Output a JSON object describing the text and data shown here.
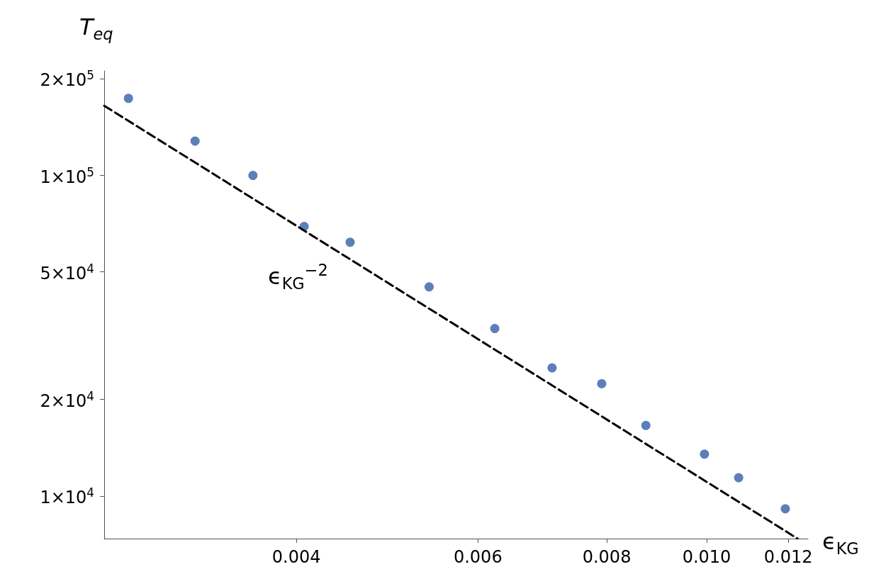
{
  "chart_data": {
    "type": "scatter",
    "xlabel": "ϵ$_{KG}$",
    "ylabel": "T$_{eq}$",
    "log": "xy",
    "xlim": [
      0.002604,
      0.01254
    ],
    "ylim": [
      7360,
      212000
    ],
    "xticks": [
      0.004,
      0.006,
      0.008,
      {
        "value": 0.01,
        "label": "0.010"
      },
      0.012
    ],
    "yticks": [
      {
        "value": 10000,
        "label": "1×10$^{4}$"
      },
      {
        "value": 20000,
        "label": "2×10$^{4}$"
      },
      {
        "value": 50000,
        "label": "5×10$^{4}$"
      },
      {
        "value": 100000,
        "label": "1×10$^{5}$"
      },
      {
        "value": 200000,
        "label": "2×10$^{5}$"
      }
    ],
    "grid": false,
    "marker": "circle",
    "annotations": [
      "ϵ$_{KG}$$^{−2}$"
    ],
    "series": [
      {
        "color": "#5b7fba",
        "x": [
          0.002749,
          0.00319,
          0.00363,
          0.00407,
          0.00451,
          0.00538,
          0.00623,
          0.00708,
          0.00791,
          0.00873,
          0.00995,
          0.01074,
          0.01192
        ],
        "values": [
          174000,
          128000,
          100000,
          69300,
          61900,
          44900,
          33300,
          25100,
          22400,
          16600,
          13500,
          11400,
          9120
        ]
      },
      {
        "type": "line",
        "color": "#000000",
        "line_style": "dashed",
        "marker": "none",
        "x": [
          0.002604,
          0.01225
        ],
        "values": [
          165000,
          7360
        ]
      }
    ]
  }
}
